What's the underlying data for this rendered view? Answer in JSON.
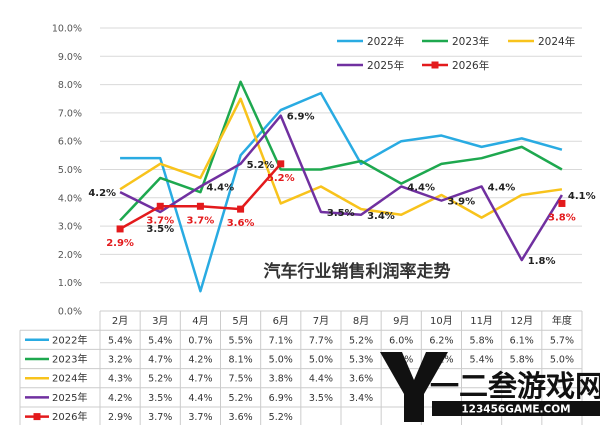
{
  "chart_data": {
    "type": "line",
    "title": "汽车行业销售利润率走势",
    "categories": [
      "2月",
      "3月",
      "4月",
      "5月",
      "6月",
      "7月",
      "8月",
      "9月",
      "10月",
      "11月",
      "12月",
      "年度"
    ],
    "y_ticks": [
      "0.0%",
      "1.0%",
      "2.0%",
      "3.0%",
      "4.0%",
      "5.0%",
      "6.0%",
      "7.0%",
      "8.0%",
      "9.0%",
      "10.0%"
    ],
    "ylim": [
      0,
      10
    ],
    "grid": true,
    "legend_position": "top-right",
    "series": [
      {
        "name": "2022年",
        "color": "#29abe2",
        "marker": "none",
        "values": [
          5.4,
          5.4,
          0.7,
          5.5,
          7.1,
          7.7,
          5.2,
          6.0,
          6.2,
          5.8,
          6.1,
          5.7
        ],
        "cells": [
          "5.4%",
          "5.4%",
          "0.7%",
          "5.5%",
          "7.1%",
          "7.7%",
          "5.2%",
          "6.0%",
          "6.2%",
          "5.8%",
          "6.1%",
          "5.7%"
        ]
      },
      {
        "name": "2023年",
        "color": "#1ea84f",
        "marker": "none",
        "values": [
          3.2,
          4.7,
          4.2,
          8.1,
          5.0,
          5.0,
          5.3,
          4.5,
          5.2,
          5.4,
          5.8,
          5.0
        ],
        "cells": [
          "3.2%",
          "4.7%",
          "4.2%",
          "8.1%",
          "5.0%",
          "5.0%",
          "5.3%",
          "4.5%",
          "5.2%",
          "5.4%",
          "5.8%",
          "5.0%"
        ]
      },
      {
        "name": "2024年",
        "color": "#f8c31c",
        "marker": "none",
        "values": [
          4.3,
          5.2,
          4.7,
          7.5,
          3.8,
          4.4,
          3.6,
          3.4,
          4.1,
          3.3,
          4.1,
          4.3
        ],
        "cells": [
          "4.3%",
          "5.2%",
          "4.7%",
          "7.5%",
          "3.8%",
          "4.4%",
          "3.6%",
          "",
          "",
          "",
          "",
          ""
        ]
      },
      {
        "name": "2025年",
        "color": "#7030a0",
        "marker": "none",
        "values": [
          4.2,
          3.5,
          4.4,
          5.2,
          6.9,
          3.5,
          3.4,
          4.4,
          3.9,
          4.4,
          1.8,
          4.1
        ],
        "cells": [
          "4.2%",
          "3.5%",
          "4.4%",
          "5.2%",
          "6.9%",
          "3.5%",
          "3.4%",
          "",
          "",
          "",
          "",
          ""
        ]
      },
      {
        "name": "2026年",
        "color": "#e31a1c",
        "marker": "square",
        "values": [
          2.9,
          3.7,
          3.7,
          3.6,
          5.2,
          null,
          null,
          null,
          null,
          null,
          null,
          3.8
        ],
        "cells": [
          "2.9%",
          "3.7%",
          "3.7%",
          "3.6%",
          "5.2%",
          "",
          "",
          "",
          "",
          "",
          "",
          ""
        ]
      }
    ],
    "annotations": [
      {
        "text": "4.2%",
        "color": "#222222",
        "x": "2月",
        "y": 4.2,
        "pos": "left"
      },
      {
        "text": "2.9%",
        "color": "#e31a1c",
        "x": "2月",
        "y": 2.9,
        "pos": "below"
      },
      {
        "text": "3.7%",
        "color": "#e31a1c",
        "x": "3月",
        "y": 3.7,
        "pos": "below"
      },
      {
        "text": "3.5%",
        "color": "#222222",
        "x": "3月",
        "y": 3.5,
        "pos": "below2"
      },
      {
        "text": "3.7%",
        "color": "#e31a1c",
        "x": "4月",
        "y": 3.7,
        "pos": "below"
      },
      {
        "text": "4.4%",
        "color": "#222222",
        "x": "4月",
        "y": 4.4,
        "pos": "right"
      },
      {
        "text": "3.6%",
        "color": "#e31a1c",
        "x": "5月",
        "y": 3.6,
        "pos": "below"
      },
      {
        "text": "5.2%",
        "color": "#222222",
        "x": "5月",
        "y": 5.2,
        "pos": "right"
      },
      {
        "text": "5.2%",
        "color": "#e31a1c",
        "x": "6月",
        "y": 5.2,
        "pos": "below"
      },
      {
        "text": "6.9%",
        "color": "#222222",
        "x": "6月",
        "y": 6.9,
        "pos": "right"
      },
      {
        "text": "3.5%",
        "color": "#222222",
        "x": "7月",
        "y": 3.5,
        "pos": "right"
      },
      {
        "text": "3.4%",
        "color": "#222222",
        "x": "8月",
        "y": 3.4,
        "pos": "right"
      },
      {
        "text": "4.4%",
        "color": "#222222",
        "x": "9月",
        "y": 4.4,
        "pos": "right"
      },
      {
        "text": "3.9%",
        "color": "#222222",
        "x": "10月",
        "y": 3.9,
        "pos": "right"
      },
      {
        "text": "4.4%",
        "color": "#222222",
        "x": "11月",
        "y": 4.4,
        "pos": "right"
      },
      {
        "text": "1.8%",
        "color": "#222222",
        "x": "12月",
        "y": 1.8,
        "pos": "right"
      },
      {
        "text": "4.1%",
        "color": "#222222",
        "x": "年度",
        "y": 4.1,
        "pos": "right"
      },
      {
        "text": "3.8%",
        "color": "#e31a1c",
        "x": "年度",
        "y": 3.8,
        "pos": "below"
      }
    ]
  },
  "watermark": {
    "logo_letter": "Y",
    "brand": "一二叁游戏网",
    "url": "123456GAME.COM"
  }
}
